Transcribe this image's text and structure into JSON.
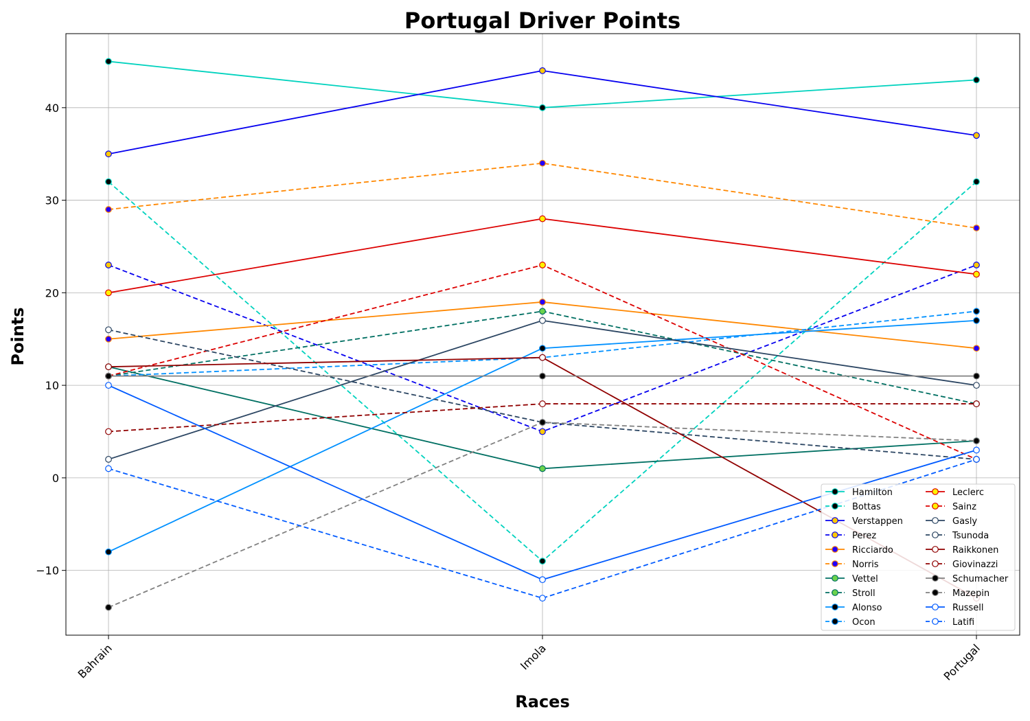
{
  "chart_data": {
    "type": "line",
    "title": "Portugal Driver Points",
    "xlabel": "Races",
    "ylabel": "Points",
    "categories": [
      "Bahrain",
      "Imola",
      "Portugal"
    ],
    "ylim": [
      -17,
      48
    ],
    "yticks": [
      -10,
      0,
      10,
      20,
      30,
      40
    ],
    "grid": true,
    "legend_position": "lower-right",
    "series": [
      {
        "name": "Hamilton",
        "values": [
          45,
          40,
          43
        ],
        "color": "#00D2BE",
        "dash": false,
        "marker_fill": "#000000"
      },
      {
        "name": "Bottas",
        "values": [
          32,
          -9,
          32
        ],
        "color": "#00D2BE",
        "dash": true,
        "marker_fill": "#000000"
      },
      {
        "name": "Verstappen",
        "values": [
          35,
          44,
          37
        ],
        "color": "#0600EF",
        "dash": false,
        "marker_fill": "#FFC906"
      },
      {
        "name": "Perez",
        "values": [
          23,
          5,
          23
        ],
        "color": "#0600EF",
        "dash": true,
        "marker_fill": "#FFC906"
      },
      {
        "name": "Ricciardo",
        "values": [
          15,
          19,
          14
        ],
        "color": "#FF8700",
        "dash": false,
        "marker_fill": "#2300FF"
      },
      {
        "name": "Norris",
        "values": [
          29,
          34,
          27
        ],
        "color": "#FF8700",
        "dash": true,
        "marker_fill": "#2300FF"
      },
      {
        "name": "Vettel",
        "values": [
          12,
          1,
          4
        ],
        "color": "#006F62",
        "dash": false,
        "marker_fill": "#6CD34C"
      },
      {
        "name": "Stroll",
        "values": [
          11,
          18,
          8
        ],
        "color": "#006F62",
        "dash": true,
        "marker_fill": "#6CD34C"
      },
      {
        "name": "Alonso",
        "values": [
          -8,
          14,
          17
        ],
        "color": "#0090FF",
        "dash": false,
        "marker_fill": "#000000"
      },
      {
        "name": "Ocon",
        "values": [
          11,
          13,
          18
        ],
        "color": "#0090FF",
        "dash": true,
        "marker_fill": "#000000"
      },
      {
        "name": "Leclerc",
        "values": [
          20,
          28,
          22
        ],
        "color": "#DC0000",
        "dash": false,
        "marker_fill": "#FFF200"
      },
      {
        "name": "Sainz",
        "values": [
          11,
          23,
          2
        ],
        "color": "#DC0000",
        "dash": true,
        "marker_fill": "#FFF200"
      },
      {
        "name": "Gasly",
        "values": [
          2,
          17,
          10
        ],
        "color": "#2B4562",
        "dash": false,
        "marker_fill": "#FFFFFF"
      },
      {
        "name": "Tsunoda",
        "values": [
          16,
          6,
          2
        ],
        "color": "#2B4562",
        "dash": true,
        "marker_fill": "#FFFFFF"
      },
      {
        "name": "Raikkonen",
        "values": [
          12,
          13,
          -13
        ],
        "color": "#900000",
        "dash": false,
        "marker_fill": "#FFFFFF"
      },
      {
        "name": "Giovinazzi",
        "values": [
          5,
          8,
          8
        ],
        "color": "#900000",
        "dash": true,
        "marker_fill": "#FFFFFF"
      },
      {
        "name": "Schumacher",
        "values": [
          11,
          11,
          11
        ],
        "color": "#808080",
        "dash": false,
        "marker_fill": "#000000"
      },
      {
        "name": "Mazepin",
        "values": [
          -14,
          6,
          4
        ],
        "color": "#808080",
        "dash": true,
        "marker_fill": "#000000"
      },
      {
        "name": "Russell",
        "values": [
          10,
          -11,
          3
        ],
        "color": "#005AFF",
        "dash": false,
        "marker_fill": "#FFFFFF"
      },
      {
        "name": "Latifi",
        "values": [
          1,
          -13,
          2
        ],
        "color": "#005AFF",
        "dash": true,
        "marker_fill": "#FFFFFF"
      }
    ]
  }
}
